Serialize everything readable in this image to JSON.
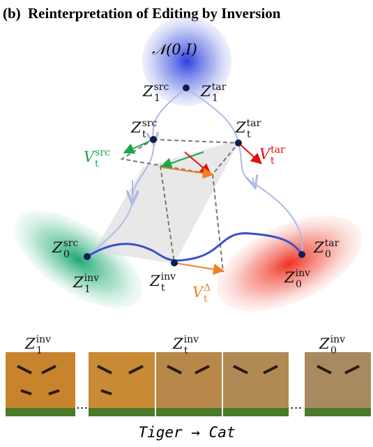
{
  "header": {
    "label": "(b)",
    "title": "Reinterpretation of Editing by Inversion"
  },
  "prior": "𝒩(0,I)",
  "labels": [
    {
      "base": "Z",
      "sub": "1",
      "sup": "src"
    },
    {
      "base": "Z",
      "sub": "1",
      "sup": "tar"
    },
    {
      "base": "Z",
      "sub": "t",
      "sup": "src"
    },
    {
      "base": "Z",
      "sub": "t",
      "sup": "tar"
    },
    {
      "base": "V",
      "sub": "t",
      "sup": "src"
    },
    {
      "base": "V",
      "sub": "t",
      "sup": "tar"
    },
    {
      "base": "Z",
      "sub": "0",
      "sup": "src"
    },
    {
      "base": "Z",
      "sub": "1",
      "sup": "inv"
    },
    {
      "base": "Z",
      "sub": "t",
      "sup": "inv"
    },
    {
      "base": "V",
      "sub": "t",
      "sup": "Δ"
    },
    {
      "base": "Z",
      "sub": "0",
      "sup": "tar"
    },
    {
      "base": "Z",
      "sub": "0",
      "sup": "inv"
    },
    {
      "base": "Z",
      "sub": "1",
      "sup": "inv"
    },
    {
      "base": "Z",
      "sub": "t",
      "sup": "inv"
    },
    {
      "base": "Z",
      "sub": "0",
      "sup": "inv"
    }
  ],
  "ellipsis": "...",
  "caption": "Tiger → Cat"
}
